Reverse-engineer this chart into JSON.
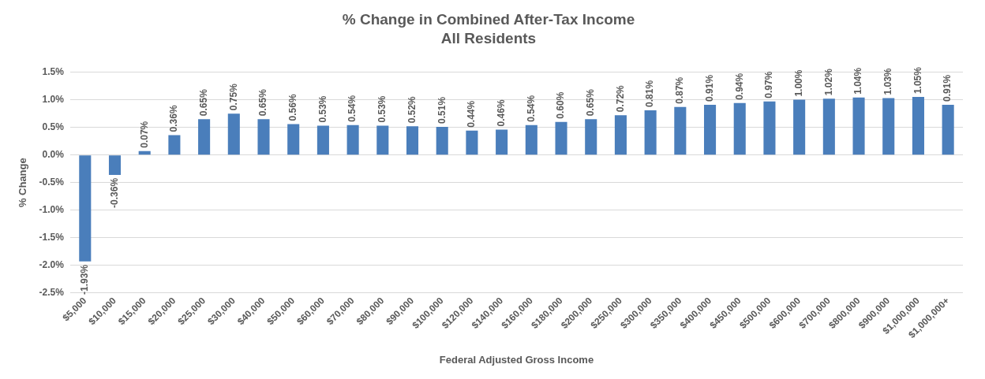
{
  "chart_data": {
    "type": "bar",
    "title": "% Change in Combined After-Tax Income",
    "subtitle": "All Residents",
    "xlabel": "Federal Adjusted Gross Income",
    "ylabel": "% Change",
    "categories": [
      "$5,000",
      "$10,000",
      "$15,000",
      "$20,000",
      "$25,000",
      "$30,000",
      "$40,000",
      "$50,000",
      "$60,000",
      "$70,000",
      "$80,000",
      "$90,000",
      "$100,000",
      "$120,000",
      "$140,000",
      "$160,000",
      "$180,000",
      "$200,000",
      "$250,000",
      "$300,000",
      "$350,000",
      "$400,000",
      "$450,000",
      "$500,000",
      "$600,000",
      "$700,000",
      "$800,000",
      "$900,000",
      "$1,000,000",
      "$1,000,000+"
    ],
    "values": [
      -1.93,
      -0.36,
      0.07,
      0.36,
      0.65,
      0.75,
      0.65,
      0.56,
      0.53,
      0.54,
      0.53,
      0.52,
      0.51,
      0.44,
      0.46,
      0.54,
      0.6,
      0.65,
      0.72,
      0.81,
      0.87,
      0.91,
      0.94,
      0.97,
      1.0,
      1.02,
      1.04,
      1.03,
      1.05,
      0.91
    ],
    "value_labels": [
      "-1.93%",
      "-0.36%",
      "0.07%",
      "0.36%",
      "0.65%",
      "0.75%",
      "0.65%",
      "0.56%",
      "0.53%",
      "0.54%",
      "0.53%",
      "0.52%",
      "0.51%",
      "0.44%",
      "0.46%",
      "0.54%",
      "0.60%",
      "0.65%",
      "0.72%",
      "0.81%",
      "0.87%",
      "0.91%",
      "0.94%",
      "0.97%",
      "1.00%",
      "1.02%",
      "1.04%",
      "1.03%",
      "1.05%",
      "0.91%"
    ],
    "color": "#4a7ebb",
    "ylim": [
      -2.5,
      1.5
    ],
    "yticks": [
      {
        "value": -2.5,
        "label": "-2.5%"
      },
      {
        "value": -2,
        "label": "-2.0%"
      },
      {
        "value": -1.5,
        "label": "-1.5%"
      },
      {
        "value": -1,
        "label": "-1.0%"
      },
      {
        "value": -0.5,
        "label": "-0.5%"
      },
      {
        "value": 0,
        "label": "0.0%"
      },
      {
        "value": 0.5,
        "label": "0.5%"
      },
      {
        "value": 1,
        "label": "1.0%"
      },
      {
        "value": 1.5,
        "label": "1.5%"
      }
    ],
    "grid": "y",
    "legend": false
  }
}
